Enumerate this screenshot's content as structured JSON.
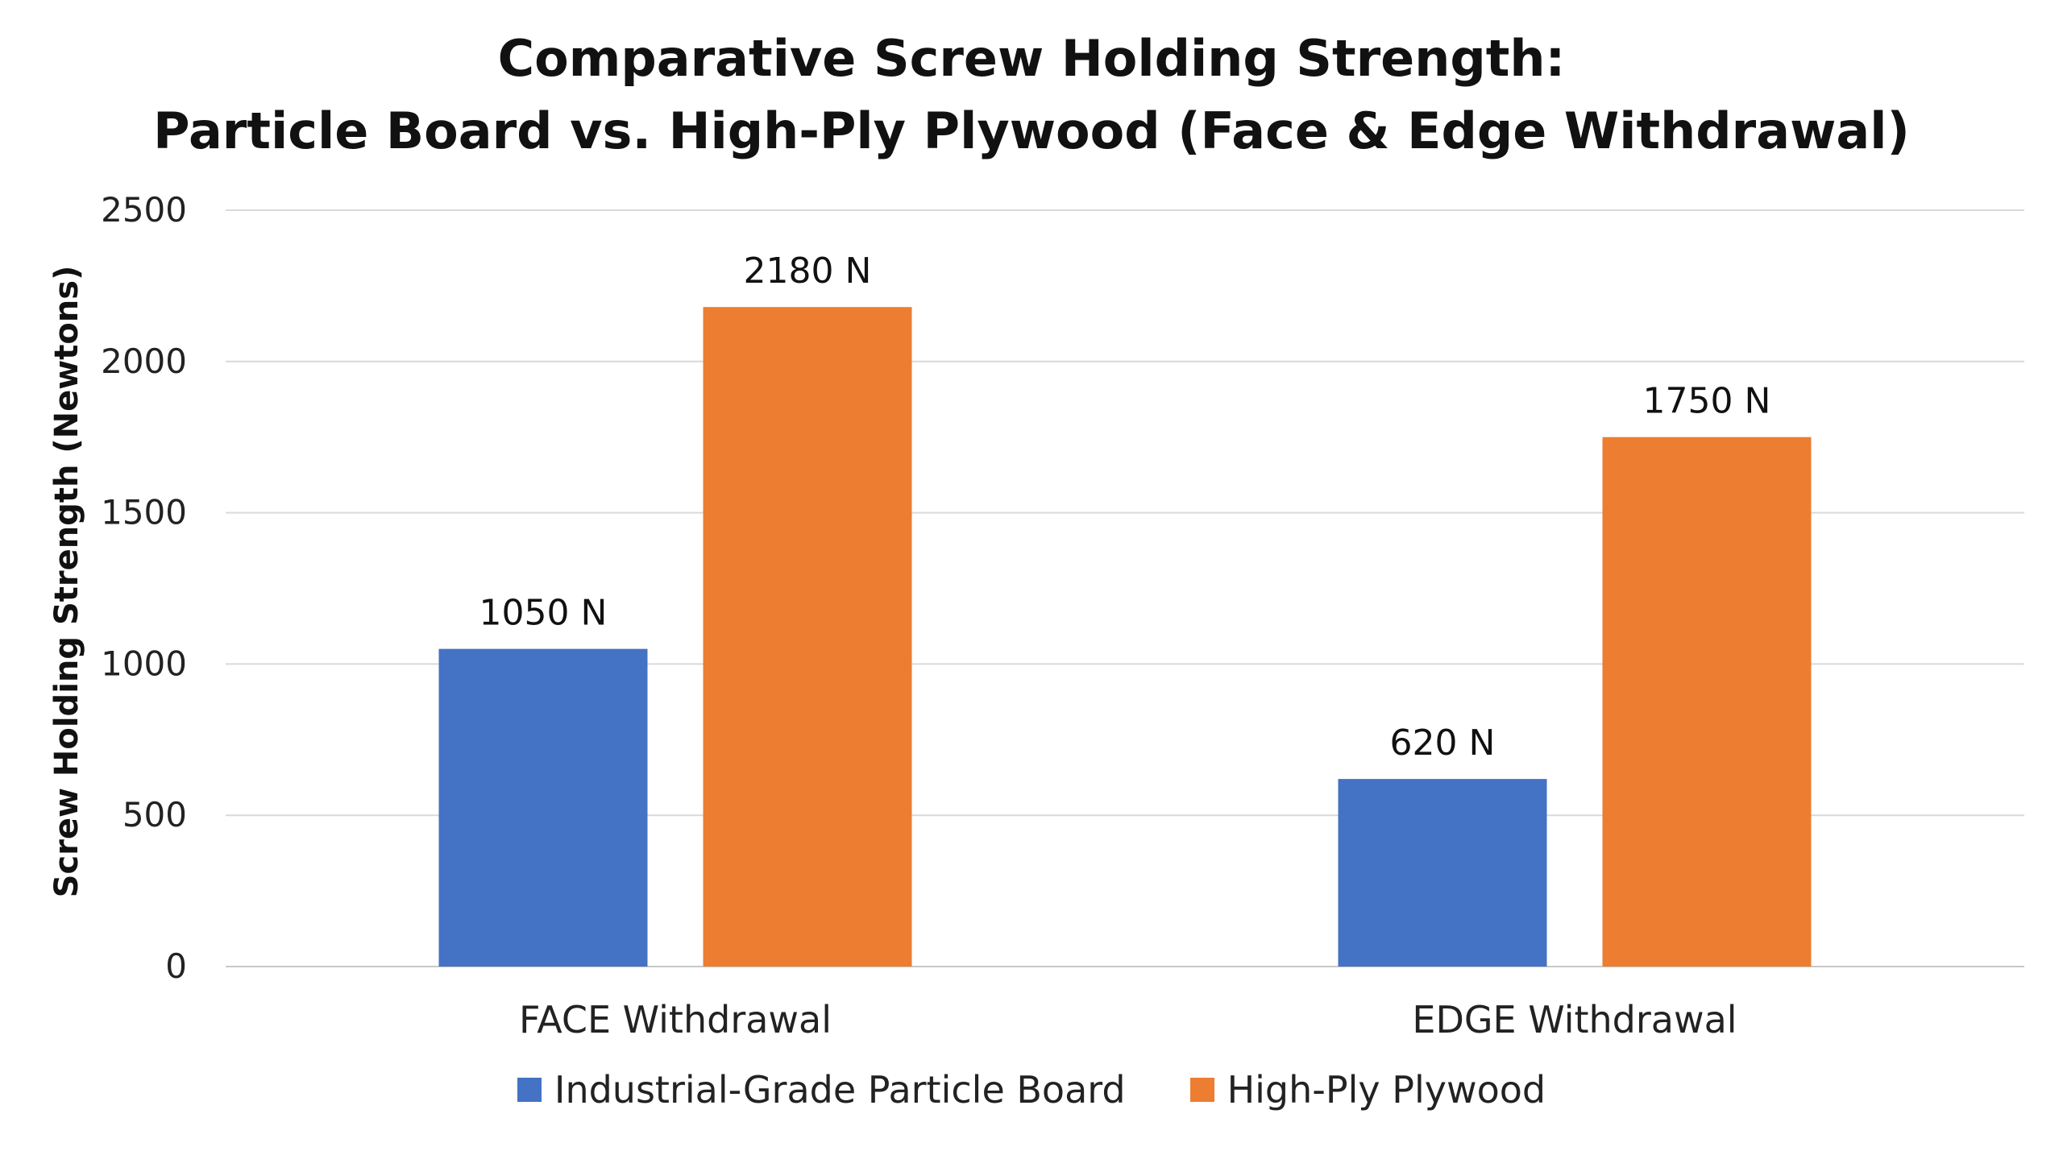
{
  "chart_data": {
    "type": "bar",
    "title_lines": [
      "Comparative Screw Holding Strength:",
      "Particle Board vs. High-Ply Plywood (Face & Edge Withdrawal)"
    ],
    "xlabel": "",
    "ylabel": "Screw Holding Strength (Newtons)",
    "ylim": [
      0,
      2500
    ],
    "yticks": [
      0,
      500,
      1000,
      1500,
      2000,
      2500
    ],
    "categories": [
      "FACE Withdrawal",
      "EDGE Withdrawal"
    ],
    "series": [
      {
        "name": "Industrial-Grade Particle Board",
        "color": "#4472C4",
        "values": [
          1050,
          620
        ],
        "labels": [
          "1050 N",
          "620 N"
        ]
      },
      {
        "name": "High-Ply Plywood",
        "color": "#ED7D31",
        "values": [
          2180,
          1750
        ],
        "labels": [
          "2180 N",
          "1750 N"
        ]
      }
    ],
    "grid": true,
    "legend_position": "bottom"
  }
}
